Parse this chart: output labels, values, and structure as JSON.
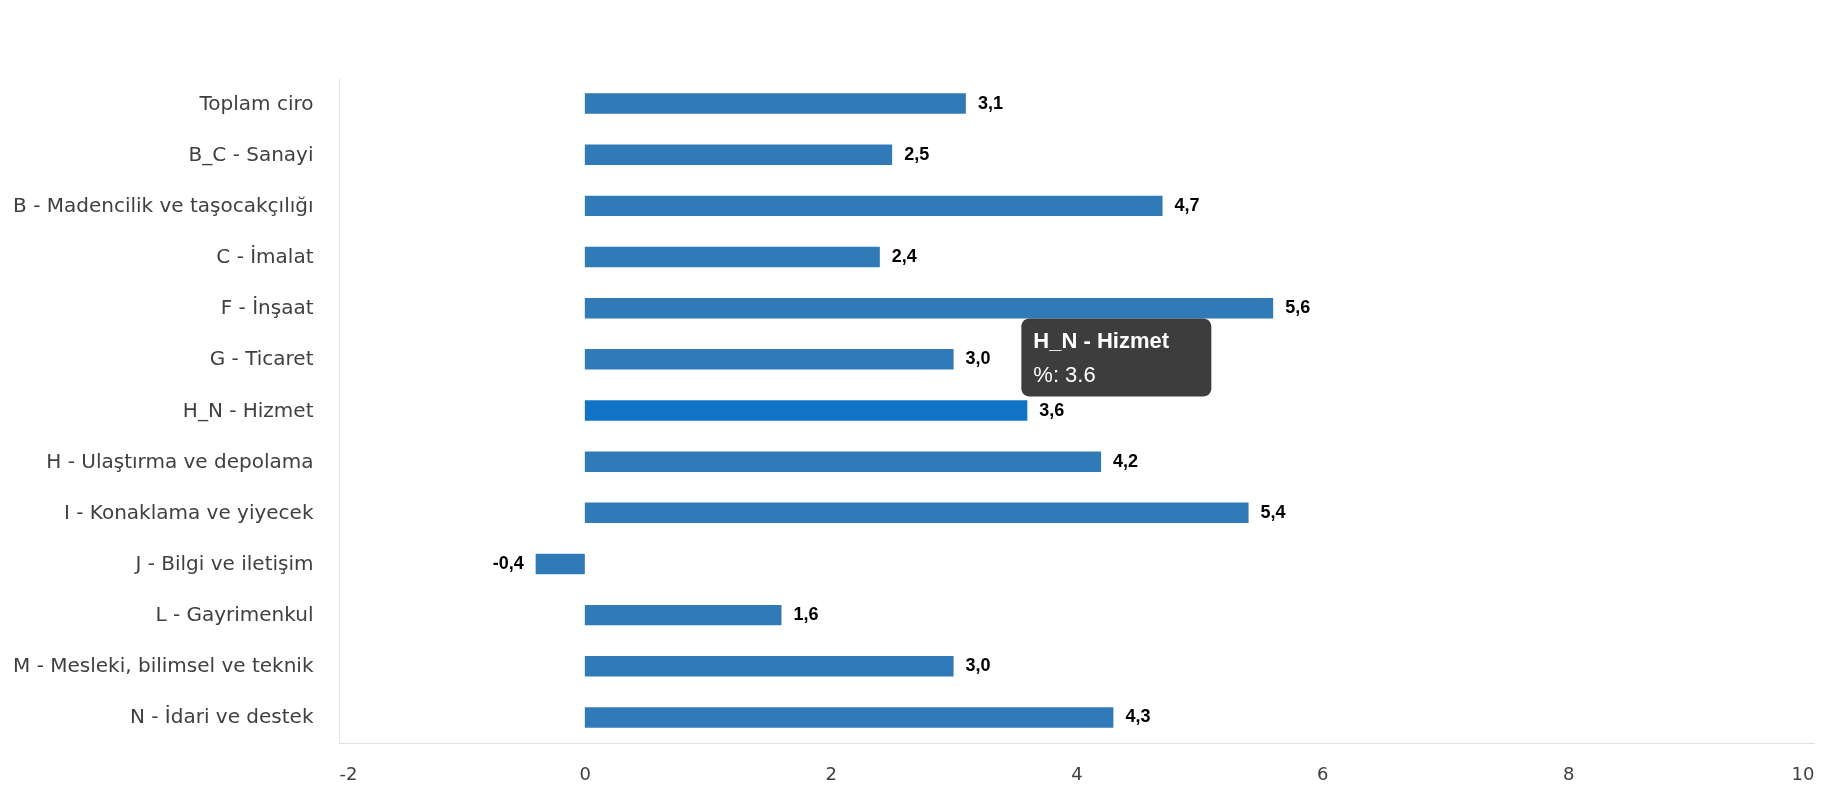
{
  "chart_data": {
    "type": "bar",
    "orientation": "horizontal",
    "categories": [
      "Toplam ciro",
      "B_C - Sanayi",
      "B - Madencilik ve taşocakçılığı",
      "C - İmalat",
      "F - İnşaat",
      "G - Ticaret",
      "H_N - Hizmet",
      "H - Ulaştırma ve depolama",
      "I - Konaklama ve yiyecek",
      "J - Bilgi ve iletişim",
      "L - Gayrimenkul",
      "M - Mesleki, bilimsel ve teknik",
      "N - İdari ve destek"
    ],
    "values": [
      3.1,
      2.5,
      4.7,
      2.4,
      5.6,
      3.0,
      3.6,
      4.2,
      5.4,
      -0.4,
      1.6,
      3.0,
      4.3
    ],
    "colors": [
      "#307bb7",
      "#307bb7",
      "#307bb7",
      "#307bb7",
      "#307bb7",
      "#307bb7",
      "#1173c5",
      "#307bb7",
      "#307bb7",
      "#307bb7",
      "#307bb7",
      "#307bb7",
      "#307bb7"
    ],
    "value_labels": [
      "3,1",
      "2,5",
      "4,7",
      "2,4",
      "5,6",
      "3,0",
      "3,6",
      "4,2",
      "5,4",
      "-0,4",
      "1,6",
      "3,0",
      "4,3"
    ],
    "xlim": [
      -2,
      10
    ],
    "xticks": [
      -2,
      0,
      2,
      4,
      6,
      8,
      10
    ],
    "grid": false,
    "legend": false,
    "annotations": [
      {
        "text": "H_N - Hizmet\n%: 3.6",
        "x": 3.6,
        "y": "H_N - Hizmet"
      }
    ]
  }
}
